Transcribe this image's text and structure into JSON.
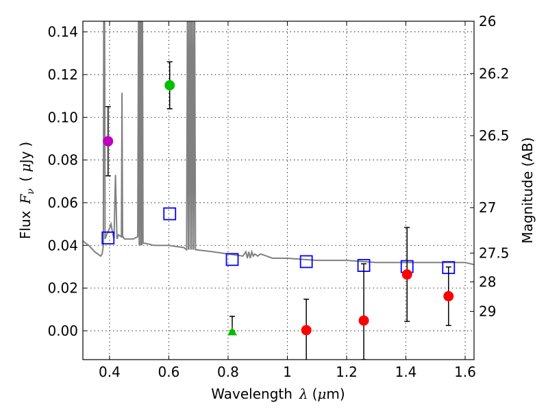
{
  "chart_data": {
    "type": "scatter",
    "xlabel_parts": [
      "Wavelength",
      "λ",
      "(",
      "μ",
      "m)"
    ],
    "ylabel_parts": [
      "Flux",
      "F",
      "ν",
      "(",
      "μ",
      "Jy",
      ")"
    ],
    "y2label": "Magnitude (AB)",
    "xlim": [
      0.31,
      1.63
    ],
    "ylim": [
      -0.0135,
      0.145
    ],
    "xticks": [
      0.4,
      0.6,
      0.8,
      1.0,
      1.2,
      1.4,
      1.6
    ],
    "xtick_labels": [
      "0.4",
      "0.6",
      "0.8",
      "1",
      "1.2",
      "1.4",
      "1.6"
    ],
    "yticks": [
      0.0,
      0.02,
      0.04,
      0.06,
      0.08,
      0.1,
      0.12,
      0.14
    ],
    "ytick_labels": [
      "0.00",
      "0.02",
      "0.04",
      "0.06",
      "0.08",
      "0.10",
      "0.12",
      "0.14"
    ],
    "y2ticks": [
      {
        "label": "26",
        "flux": 0.145
      },
      {
        "label": "26.2",
        "flux": 0.1205
      },
      {
        "label": "26.5",
        "flux": 0.0914
      },
      {
        "label": "27",
        "flux": 0.0577
      },
      {
        "label": "27.5",
        "flux": 0.0364
      },
      {
        "label": "28",
        "flux": 0.0229
      },
      {
        "label": "29",
        "flux": 0.0091
      }
    ],
    "grid": true,
    "colors": {
      "model": "#808080",
      "purple": "#bf00bf",
      "green": "#00bf00",
      "red": "#ff0000",
      "blue": "#0000ff",
      "error": "#000000"
    },
    "model_sed": {
      "name": "model SED",
      "x": [
        0.31,
        0.33,
        0.35,
        0.37,
        0.375,
        0.379,
        0.3805,
        0.383,
        0.385,
        0.39,
        0.4,
        0.405,
        0.41,
        0.415,
        0.42,
        0.425,
        0.43,
        0.44,
        0.442,
        0.444,
        0.446,
        0.45,
        0.48,
        0.495,
        0.498,
        0.5,
        0.502,
        0.505,
        0.507,
        0.509,
        0.511,
        0.513,
        0.52,
        0.55,
        0.6,
        0.65,
        0.66,
        0.663,
        0.666,
        0.669,
        0.672,
        0.675,
        0.678,
        0.681,
        0.684,
        0.687,
        0.69,
        0.75,
        0.8,
        0.85,
        0.86,
        0.865,
        0.87,
        0.875,
        0.88,
        0.885,
        0.89,
        0.9,
        0.91,
        0.93,
        0.95,
        1.0,
        1.1,
        1.2,
        1.3,
        1.4,
        1.5,
        1.6,
        1.63
      ],
      "y": [
        0.042,
        0.04,
        0.037,
        0.035,
        0.036,
        0.04,
        0.16,
        0.16,
        0.043,
        0.045,
        0.048,
        0.05,
        0.046,
        0.043,
        0.073,
        0.043,
        0.045,
        0.044,
        0.1115,
        0.044,
        0.044,
        0.043,
        0.043,
        0.044,
        0.16,
        0.04,
        0.16,
        0.04,
        0.16,
        0.04,
        0.16,
        0.041,
        0.041,
        0.04,
        0.04,
        0.039,
        0.038,
        0.16,
        0.038,
        0.16,
        0.038,
        0.16,
        0.038,
        0.16,
        0.038,
        0.16,
        0.038,
        0.037,
        0.036,
        0.035,
        0.037,
        0.034,
        0.037,
        0.034,
        0.037,
        0.035,
        0.036,
        0.035,
        0.036,
        0.035,
        0.034,
        0.034,
        0.033,
        0.033,
        0.032,
        0.032,
        0.032,
        0.032,
        0.031
      ]
    },
    "series": [
      {
        "name": "purple detection",
        "marker": "circle",
        "color": "purple",
        "points": [
          {
            "x": 0.395,
            "y": 0.0888,
            "yerr": 0.0162
          }
        ]
      },
      {
        "name": "green detection",
        "marker": "circle",
        "color": "green",
        "points": [
          {
            "x": 0.603,
            "y": 0.115,
            "yerr": 0.011
          }
        ]
      },
      {
        "name": "green triangle",
        "marker": "triangle",
        "color": "green",
        "points": [
          {
            "x": 0.814,
            "y": -0.0005,
            "ylo": 0.0,
            "yhi": 0.0068
          }
        ]
      },
      {
        "name": "red detections",
        "marker": "circle",
        "color": "red",
        "points": [
          {
            "x": 1.064,
            "y": 0.0003,
            "yerr": 0.0145
          },
          {
            "x": 1.258,
            "y": 0.0048,
            "ylo": -0.0135,
            "yhi": 0.0314
          },
          {
            "x": 1.404,
            "y": 0.0264,
            "yerr": 0.022
          },
          {
            "x": 1.544,
            "y": 0.0162,
            "yerr": 0.0137
          }
        ]
      },
      {
        "name": "model photometry",
        "marker": "square",
        "color": "blue",
        "points": [
          {
            "x": 0.395,
            "y": 0.0435
          },
          {
            "x": 0.603,
            "y": 0.0548
          },
          {
            "x": 0.814,
            "y": 0.0334
          },
          {
            "x": 1.064,
            "y": 0.0324
          },
          {
            "x": 1.258,
            "y": 0.0306
          },
          {
            "x": 1.404,
            "y": 0.0301
          },
          {
            "x": 1.544,
            "y": 0.0296
          }
        ]
      }
    ]
  }
}
